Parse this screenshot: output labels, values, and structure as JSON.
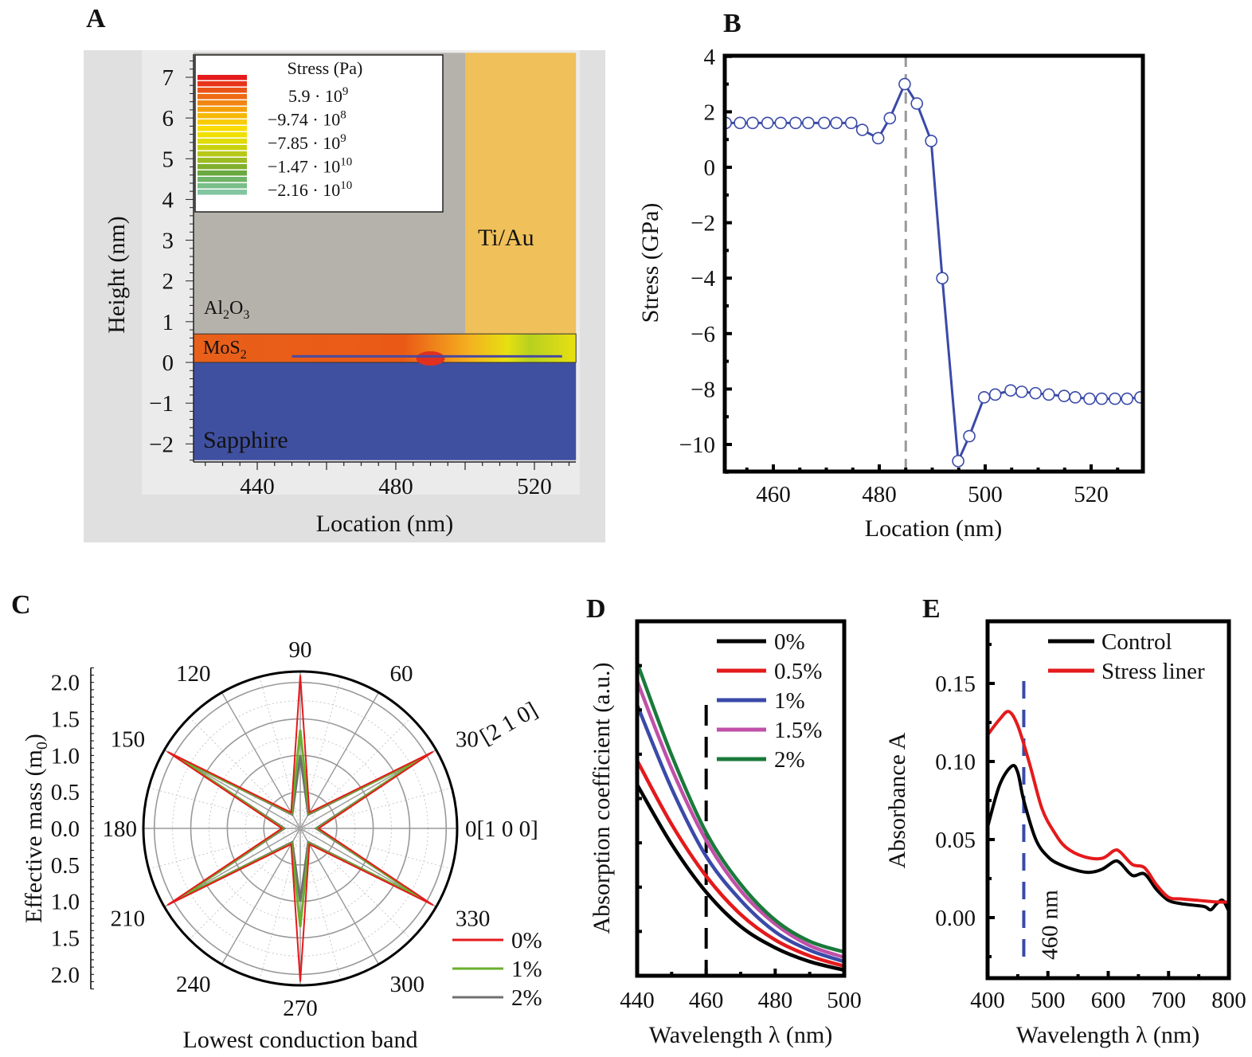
{
  "panels": {
    "a": "A",
    "b": "B",
    "c": "C",
    "d": "D",
    "e": "E"
  },
  "chart_data": [
    {
      "panel": "A",
      "type": "heatmap",
      "xlabel": "Location (nm)",
      "ylabel": "Height (nm)",
      "xticks": [
        "440",
        "480",
        "520"
      ],
      "xtick_values": [
        440,
        480,
        520
      ],
      "yticks": [
        "7",
        "6",
        "5",
        "4",
        "3",
        "2",
        "1",
        "0",
        "−1",
        "−2"
      ],
      "ytick_values": [
        7,
        6,
        5,
        4,
        3,
        2,
        1,
        0,
        -1,
        -2
      ],
      "xlim": [
        421.6,
        532
      ],
      "ylim": [
        -2.4,
        7.6
      ],
      "regions": [
        {
          "label": "Al",
          "sub1": "2",
          "mid": "O",
          "sub2": "3",
          "x": [
            421.6,
            500
          ],
          "y": [
            0.7,
            7.6
          ],
          "color": "#b5b2ab"
        },
        {
          "label": "Ti/Au",
          "x": [
            500,
            532
          ],
          "y": [
            0.7,
            7.6
          ],
          "color": "#f0c05a"
        },
        {
          "label": "MoS",
          "sub1": "2",
          "x": [
            421.6,
            532
          ],
          "y": [
            0,
            0.7
          ],
          "color": "#e8601a"
        },
        {
          "label": "Sapphire",
          "x": [
            421.6,
            532
          ],
          "y": [
            -2.4,
            0
          ],
          "color": "#4050a0"
        }
      ],
      "line_cut": {
        "x": [
          450,
          528
        ],
        "y": 0.15,
        "color": "#4a4aa0"
      },
      "colorbar": {
        "title": "Stress (Pa)",
        "ticks": [
          {
            "mantissa": "5.9 · 10",
            "exp": "9"
          },
          {
            "mantissa": "−9.74 · 10",
            "exp": "8"
          },
          {
            "mantissa": "−7.85 · 10",
            "exp": "9"
          },
          {
            "mantissa": "−1.47 · 10",
            "exp": "10"
          },
          {
            "mantissa": "−2.16 · 10",
            "exp": "10"
          }
        ],
        "colors": [
          "#e41a1c",
          "#e8341a",
          "#ea5418",
          "#ee6a14",
          "#f18612",
          "#f4a00c",
          "#f7b808",
          "#f9cc06",
          "#f8dc04",
          "#f0e000",
          "#e0dc08",
          "#cad210",
          "#b8c818",
          "#9cbc22",
          "#80b02c",
          "#6aa840",
          "#70b468",
          "#78be88",
          "#82c6a0"
        ]
      }
    },
    {
      "panel": "B",
      "type": "line",
      "xlabel": "Location (nm)",
      "ylabel": "Stress (GPa)",
      "xticks": [
        "460",
        "480",
        "500",
        "520"
      ],
      "xtick_values": [
        460,
        480,
        500,
        520
      ],
      "yticks": [
        "4",
        "2",
        "0",
        "−2",
        "−4",
        "−6",
        "−8",
        "−10"
      ],
      "ytick_values": [
        4,
        2,
        0,
        -2,
        -4,
        -6,
        -8,
        -10
      ],
      "xlim": [
        450.8,
        529.5
      ],
      "ylim": [
        -11.1,
        4
      ],
      "reference_line_x": 485,
      "color": "#3a4aa8",
      "x": [
        451.0,
        453.7,
        456.1,
        458.9,
        461.4,
        464.2,
        466.6,
        469.6,
        471.9,
        474.7,
        476.8,
        479.8,
        482.0,
        484.8,
        487.1,
        489.8,
        491.9,
        494.9,
        497.0,
        499.8,
        501.9,
        504.8,
        506.9,
        509.5,
        512.0,
        514.9,
        517.0,
        519.7,
        522.0,
        524.5,
        526.8,
        529.3
      ],
      "y": [
        1.6,
        1.6,
        1.6,
        1.6,
        1.6,
        1.6,
        1.6,
        1.6,
        1.6,
        1.6,
        1.35,
        1.05,
        1.77,
        3.0,
        2.3,
        0.95,
        -4.0,
        -10.6,
        -9.7,
        -8.3,
        -8.2,
        -8.05,
        -8.1,
        -8.15,
        -8.2,
        -8.25,
        -8.3,
        -8.35,
        -8.35,
        -8.35,
        -8.35,
        -8.3
      ]
    },
    {
      "panel": "C",
      "type": "polar",
      "xlabel": "Lowest conduction band",
      "ylabel": "Effective mass (m",
      "ylabel_sub": "0",
      "ylabel_end": ")",
      "radial_ticks": [
        "2.0",
        "1.5",
        "1.0",
        "0.5",
        "0.0",
        "0.5",
        "1.0",
        "1.5",
        "2.0"
      ],
      "radial_tick_values": [
        2.0,
        1.5,
        1.0,
        0.5,
        0.0,
        -0.5,
        -1.0,
        -1.5,
        -2.0
      ],
      "rlim": [
        0,
        2.15
      ],
      "angle_labels": [
        {
          "angle": 0,
          "text": "0[1 0 0]"
        },
        {
          "angle": 30,
          "text": "30",
          "extra": "[2 1 0]"
        },
        {
          "angle": 60,
          "text": "60"
        },
        {
          "angle": 90,
          "text": "90"
        },
        {
          "angle": 120,
          "text": "120"
        },
        {
          "angle": 150,
          "text": "150"
        },
        {
          "angle": 180,
          "text": "180"
        },
        {
          "angle": 210,
          "text": "210"
        },
        {
          "angle": 240,
          "text": "240"
        },
        {
          "angle": 270,
          "text": "270"
        },
        {
          "angle": 300,
          "text": "300"
        },
        {
          "angle": 330,
          "text": "330"
        }
      ],
      "angles": [
        0,
        30,
        60,
        90,
        120,
        150,
        180,
        210,
        240,
        270,
        300,
        330
      ],
      "series": [
        {
          "name": "0%",
          "color": "#e41a1c",
          "values": [
            0.25,
            2.1,
            0.25,
            2.1,
            0.25,
            2.1,
            0.25,
            2.1,
            0.25,
            2.1,
            0.25,
            2.1
          ]
        },
        {
          "name": "1%",
          "color": "#6ab02c",
          "values": [
            0.24,
            1.9,
            0.24,
            1.35,
            0.24,
            1.9,
            0.24,
            1.9,
            0.24,
            1.35,
            0.24,
            1.9
          ]
        },
        {
          "name": "2%",
          "color": "#707070",
          "values": [
            0.22,
            1.95,
            0.22,
            1.0,
            0.22,
            1.95,
            0.22,
            1.95,
            0.22,
            1.0,
            0.22,
            1.95
          ]
        }
      ]
    },
    {
      "panel": "D",
      "type": "line",
      "xlabel": "Wavelength λ (nm)",
      "ylabel": "Absorption coefficient (a.u.)",
      "xticks": [
        "440",
        "460",
        "480",
        "500"
      ],
      "xtick_values": [
        440,
        460,
        480,
        500
      ],
      "xlim": [
        440,
        500
      ],
      "ylim": [
        0,
        1
      ],
      "reference_line_x": 460,
      "x": [
        440,
        450,
        460,
        470,
        480,
        490,
        500
      ],
      "series": [
        {
          "name": "0%",
          "color": "#000000",
          "values": [
            0.539,
            0.371,
            0.236,
            0.139,
            0.079,
            0.04,
            0.016
          ]
        },
        {
          "name": "0.5%",
          "color": "#e41a1c",
          "values": [
            0.607,
            0.427,
            0.281,
            0.173,
            0.101,
            0.056,
            0.027
          ]
        },
        {
          "name": "1%",
          "color": "#3a4aa8",
          "values": [
            0.764,
            0.528,
            0.337,
            0.213,
            0.124,
            0.072,
            0.04
          ]
        },
        {
          "name": "1.5%",
          "color": "#c050a8",
          "values": [
            0.831,
            0.584,
            0.382,
            0.24,
            0.146,
            0.085,
            0.052
          ]
        },
        {
          "name": "2%",
          "color": "#1a7a3a",
          "values": [
            0.883,
            0.622,
            0.404,
            0.258,
            0.157,
            0.097,
            0.067
          ]
        }
      ]
    },
    {
      "panel": "E",
      "type": "line",
      "xlabel": "Wavelength λ (nm)",
      "ylabel": "Absorbance A",
      "xticks": [
        "400",
        "500",
        "600",
        "700",
        "800"
      ],
      "xtick_values": [
        400,
        500,
        600,
        700,
        800
      ],
      "yticks": [
        "0.15",
        "0.10",
        "0.05",
        "0.00"
      ],
      "ytick_values": [
        0.15,
        0.1,
        0.05,
        0.0
      ],
      "xlim": [
        400,
        800
      ],
      "ylim": [
        -0.039,
        0.189
      ],
      "reference_line_x": 460,
      "reference_label": "460 nm",
      "series": [
        {
          "name": "Control",
          "color": "#000000",
          "x": [
            400,
            420,
            440,
            450,
            460,
            480,
            500,
            520,
            550,
            570,
            590,
            610,
            620,
            640,
            660,
            680,
            700,
            720,
            740,
            760,
            770,
            780,
            790,
            800
          ],
          "values": [
            0.058,
            0.085,
            0.097,
            0.093,
            0.075,
            0.05,
            0.039,
            0.034,
            0.03,
            0.029,
            0.031,
            0.036,
            0.035,
            0.027,
            0.028,
            0.018,
            0.011,
            0.009,
            0.008,
            0.007,
            0.005,
            0.009,
            0.011,
            0.004
          ]
        },
        {
          "name": "Stress liner",
          "color": "#e41a1c",
          "x": [
            400,
            420,
            435,
            450,
            470,
            490,
            510,
            530,
            560,
            590,
            610,
            620,
            640,
            660,
            680,
            700,
            720,
            750,
            780,
            800
          ],
          "values": [
            0.117,
            0.127,
            0.132,
            0.123,
            0.098,
            0.07,
            0.055,
            0.045,
            0.039,
            0.038,
            0.043,
            0.042,
            0.034,
            0.032,
            0.021,
            0.013,
            0.012,
            0.011,
            0.01,
            0.01
          ]
        }
      ]
    }
  ]
}
